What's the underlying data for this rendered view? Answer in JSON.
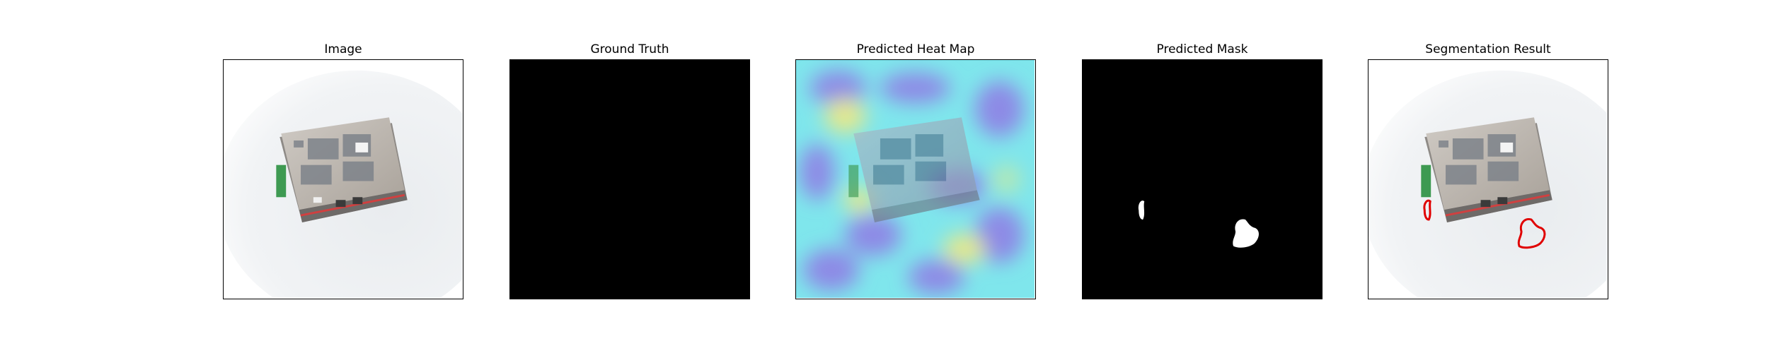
{
  "panels": [
    {
      "title": "Image"
    },
    {
      "title": "Ground Truth"
    },
    {
      "title": "Predicted Heat Map"
    },
    {
      "title": "Predicted Mask"
    },
    {
      "title": "Segmentation Result"
    }
  ],
  "colors": {
    "background": "#ffffff",
    "mask_background": "#000000",
    "mask_foreground": "#ffffff",
    "contour": "#e00000",
    "heatmap_base": "#7fe6ec",
    "heatmap_cold": "#7f78e6",
    "heatmap_warm": "#e4e88c"
  },
  "icons": [
    "device-photo",
    "defect-blob-small",
    "defect-blob-large"
  ]
}
